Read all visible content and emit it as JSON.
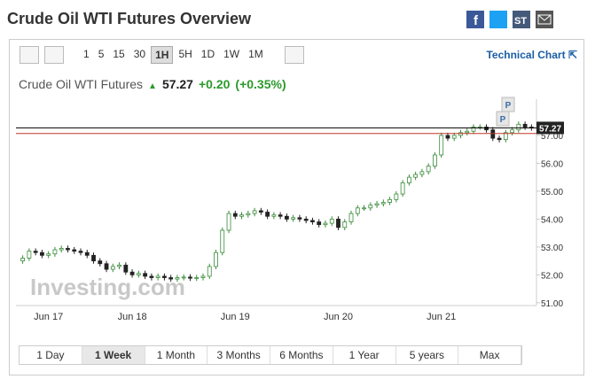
{
  "header": {
    "title": "Crude Oil WTI Futures Overview",
    "stocktwits_label": "ST"
  },
  "toolbar": {
    "intervals": [
      "1",
      "5",
      "15",
      "30",
      "1H",
      "5H",
      "1D",
      "1W",
      "1M"
    ],
    "active_interval": "1H",
    "technical_chart": "Technical Chart"
  },
  "quote": {
    "name": "Crude Oil WTI Futures",
    "price": "57.27",
    "change": "+0.20",
    "change_percent": "(+0.35%)"
  },
  "ranges": {
    "items": [
      "1 Day",
      "1 Week",
      "1 Month",
      "3 Months",
      "6 Months",
      "1 Year",
      "5 years",
      "Max"
    ],
    "active": "1 Week"
  },
  "chart_data": {
    "type": "candlestick",
    "watermark": "Investing.com",
    "markers": [
      "P",
      "P"
    ],
    "up_color": "#3a8c3a",
    "down_color": "#222222",
    "categories": [
      null,
      null,
      null,
      null,
      "Jun 17",
      null,
      null,
      null,
      null,
      null,
      null,
      null,
      null,
      null,
      null,
      null,
      null,
      "Jun 18",
      null,
      null,
      null,
      null,
      null,
      null,
      null,
      null,
      null,
      null,
      null,
      null,
      null,
      null,
      null,
      "Jun 19",
      null,
      null,
      null,
      null,
      null,
      null,
      null,
      null,
      null,
      null,
      null,
      null,
      null,
      null,
      null,
      "Jun 20",
      null,
      null,
      null,
      null,
      null,
      null,
      null,
      null,
      null,
      null,
      null,
      null,
      null,
      null,
      null,
      "Jun 21",
      null,
      null,
      null,
      null,
      null,
      null,
      null,
      null,
      null,
      null,
      null,
      null,
      null,
      null
    ],
    "open": [
      52.5,
      52.6,
      52.85,
      52.8,
      52.7,
      52.75,
      52.9,
      52.95,
      52.9,
      52.85,
      52.8,
      52.7,
      52.5,
      52.4,
      52.2,
      52.3,
      52.35,
      52.1,
      52.0,
      52.05,
      51.95,
      51.9,
      51.95,
      51.9,
      51.85,
      51.9,
      51.92,
      51.88,
      51.9,
      51.95,
      52.3,
      52.8,
      53.6,
      54.2,
      54.1,
      54.15,
      54.2,
      54.3,
      54.25,
      54.1,
      54.15,
      54.1,
      54.0,
      54.05,
      54.0,
      53.95,
      53.9,
      53.8,
      53.85,
      54.0,
      53.7,
      53.9,
      54.2,
      54.4,
      54.4,
      54.5,
      54.55,
      54.6,
      54.7,
      54.9,
      55.3,
      55.5,
      55.6,
      55.7,
      55.9,
      56.3,
      57.0,
      56.9,
      57.0,
      57.1,
      57.15,
      57.3,
      57.3,
      57.2,
      56.9,
      56.85,
      57.1,
      57.2,
      57.4,
      57.3
    ],
    "high": [
      52.7,
      52.95,
      52.95,
      52.9,
      52.85,
      53.0,
      53.05,
      53.05,
      53.0,
      52.95,
      52.9,
      52.8,
      52.6,
      52.5,
      52.4,
      52.45,
      52.45,
      52.2,
      52.15,
      52.15,
      52.05,
      52.05,
      52.05,
      52.0,
      52.0,
      52.02,
      52.02,
      52.0,
      52.05,
      52.4,
      52.9,
      53.7,
      54.3,
      54.3,
      54.25,
      54.3,
      54.4,
      54.4,
      54.35,
      54.25,
      54.25,
      54.2,
      54.15,
      54.15,
      54.1,
      54.05,
      54.0,
      53.95,
      54.1,
      54.1,
      54.0,
      54.3,
      54.5,
      54.5,
      54.6,
      54.65,
      54.7,
      54.8,
      55.0,
      55.4,
      55.6,
      55.7,
      55.8,
      56.0,
      56.4,
      57.1,
      57.1,
      57.1,
      57.2,
      57.25,
      57.4,
      57.4,
      57.4,
      57.3,
      57.0,
      57.2,
      57.3,
      57.5,
      57.5,
      57.4
    ],
    "low": [
      52.4,
      52.5,
      52.7,
      52.6,
      52.6,
      52.65,
      52.8,
      52.8,
      52.75,
      52.7,
      52.6,
      52.4,
      52.3,
      52.1,
      52.1,
      52.2,
      52.0,
      51.9,
      51.9,
      51.85,
      51.8,
      51.8,
      51.8,
      51.75,
      51.75,
      51.8,
      51.78,
      51.78,
      51.8,
      51.85,
      52.2,
      52.7,
      53.5,
      54.0,
      54.0,
      54.05,
      54.1,
      54.15,
      54.0,
      54.0,
      54.0,
      53.9,
      53.9,
      53.9,
      53.85,
      53.8,
      53.7,
      53.7,
      53.75,
      53.6,
      53.6,
      53.8,
      54.1,
      54.3,
      54.3,
      54.4,
      54.45,
      54.5,
      54.6,
      54.8,
      55.2,
      55.4,
      55.5,
      55.6,
      55.8,
      56.2,
      56.8,
      56.8,
      56.9,
      57.0,
      57.05,
      57.2,
      57.1,
      56.8,
      56.75,
      56.75,
      57.0,
      57.1,
      57.2,
      57.17
    ],
    "close": [
      52.6,
      52.85,
      52.8,
      52.7,
      52.75,
      52.9,
      52.95,
      52.9,
      52.85,
      52.8,
      52.7,
      52.5,
      52.4,
      52.2,
      52.3,
      52.35,
      52.1,
      52.0,
      52.05,
      51.95,
      51.9,
      51.95,
      51.9,
      51.85,
      51.9,
      51.92,
      51.88,
      51.9,
      51.95,
      52.3,
      52.8,
      53.6,
      54.2,
      54.1,
      54.15,
      54.2,
      54.3,
      54.25,
      54.1,
      54.15,
      54.1,
      54.0,
      54.05,
      54.0,
      53.95,
      53.9,
      53.8,
      53.85,
      54.0,
      53.7,
      53.9,
      54.2,
      54.4,
      54.4,
      54.5,
      54.55,
      54.6,
      54.7,
      54.9,
      55.3,
      55.5,
      55.6,
      55.7,
      55.9,
      56.3,
      57.0,
      56.9,
      57.0,
      57.1,
      57.15,
      57.3,
      57.3,
      57.2,
      56.9,
      56.85,
      57.1,
      57.2,
      57.4,
      57.3,
      57.27
    ],
    "reference_lines": [
      {
        "value": 57.27,
        "color": "#000000"
      },
      {
        "value": 57.07,
        "color": "#c0392b"
      }
    ],
    "ylim": [
      50.9,
      58.3
    ],
    "yticks": [
      {
        "value": 51,
        "label": "51.00"
      },
      {
        "value": 52,
        "label": "52.00"
      },
      {
        "value": 53,
        "label": "53.00"
      },
      {
        "value": 54,
        "label": "54.00"
      },
      {
        "value": 55,
        "label": "55.00"
      },
      {
        "value": 56,
        "label": "56.00"
      },
      {
        "value": 57,
        "label": "57.00"
      }
    ]
  }
}
